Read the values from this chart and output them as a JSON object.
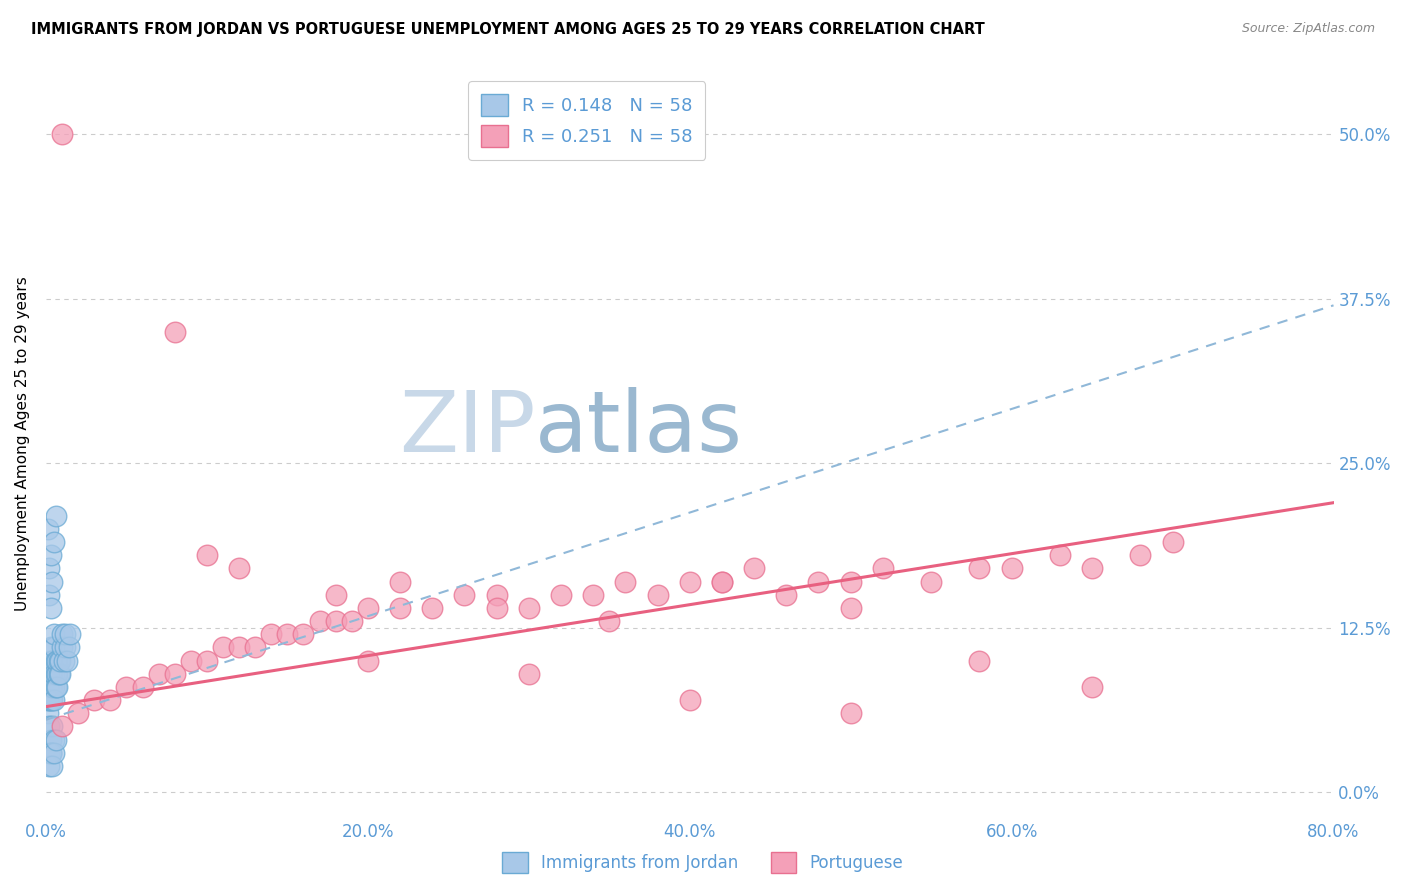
{
  "title": "IMMIGRANTS FROM JORDAN VS PORTUGUESE UNEMPLOYMENT AMONG AGES 25 TO 29 YEARS CORRELATION CHART",
  "source": "Source: ZipAtlas.com",
  "xlabel_ticks": [
    "0.0%",
    "20.0%",
    "40.0%",
    "60.0%",
    "80.0%"
  ],
  "xlabel_tick_vals": [
    0.0,
    0.2,
    0.4,
    0.6,
    0.8
  ],
  "ylabel_ticks": [
    "0.0%",
    "12.5%",
    "25.0%",
    "37.5%",
    "50.0%"
  ],
  "ylabel_tick_vals": [
    0.0,
    0.125,
    0.25,
    0.375,
    0.5
  ],
  "ylabel": "Unemployment Among Ages 25 to 29 years",
  "color_blue": "#a8c8e8",
  "color_pink": "#f4a0b8",
  "color_blue_edge": "#6aaad4",
  "color_pink_edge": "#e87090",
  "color_blue_line": "#90b8d8",
  "color_pink_line": "#e86080",
  "color_axis": "#5b9bd5",
  "color_grid": "#cccccc",
  "xlim": [
    0.0,
    0.8
  ],
  "ylim": [
    -0.02,
    0.55
  ],
  "jordan_x": [
    0.001,
    0.001,
    0.001,
    0.002,
    0.002,
    0.002,
    0.002,
    0.002,
    0.003,
    0.003,
    0.003,
    0.003,
    0.003,
    0.004,
    0.004,
    0.004,
    0.004,
    0.005,
    0.005,
    0.005,
    0.005,
    0.005,
    0.006,
    0.006,
    0.006,
    0.007,
    0.007,
    0.007,
    0.008,
    0.008,
    0.009,
    0.009,
    0.01,
    0.01,
    0.011,
    0.012,
    0.012,
    0.013,
    0.014,
    0.015,
    0.001,
    0.002,
    0.002,
    0.003,
    0.003,
    0.004,
    0.005,
    0.006,
    0.002,
    0.003,
    0.004,
    0.005,
    0.003,
    0.002,
    0.003,
    0.004,
    0.005,
    0.006
  ],
  "jordan_y": [
    0.08,
    0.06,
    0.07,
    0.09,
    0.1,
    0.07,
    0.08,
    0.05,
    0.07,
    0.08,
    0.09,
    0.1,
    0.11,
    0.07,
    0.08,
    0.09,
    0.1,
    0.08,
    0.09,
    0.07,
    0.11,
    0.12,
    0.08,
    0.09,
    0.1,
    0.09,
    0.1,
    0.08,
    0.1,
    0.09,
    0.09,
    0.1,
    0.11,
    0.12,
    0.1,
    0.11,
    0.12,
    0.1,
    0.11,
    0.12,
    0.2,
    0.17,
    0.15,
    0.14,
    0.18,
    0.16,
    0.19,
    0.21,
    0.03,
    0.04,
    0.05,
    0.04,
    0.03,
    0.02,
    0.03,
    0.02,
    0.03,
    0.04
  ],
  "portuguese_x": [
    0.01,
    0.02,
    0.03,
    0.04,
    0.05,
    0.06,
    0.07,
    0.08,
    0.09,
    0.1,
    0.11,
    0.12,
    0.13,
    0.14,
    0.15,
    0.16,
    0.17,
    0.18,
    0.19,
    0.2,
    0.22,
    0.24,
    0.26,
    0.28,
    0.3,
    0.32,
    0.34,
    0.36,
    0.38,
    0.4,
    0.42,
    0.44,
    0.46,
    0.48,
    0.5,
    0.52,
    0.55,
    0.58,
    0.6,
    0.63,
    0.65,
    0.68,
    0.7,
    0.08,
    0.12,
    0.18,
    0.22,
    0.28,
    0.35,
    0.42,
    0.5,
    0.58,
    0.65,
    0.1,
    0.2,
    0.3,
    0.4,
    0.5
  ],
  "portuguese_y": [
    0.05,
    0.06,
    0.07,
    0.07,
    0.08,
    0.08,
    0.09,
    0.09,
    0.1,
    0.1,
    0.11,
    0.11,
    0.11,
    0.12,
    0.12,
    0.12,
    0.13,
    0.13,
    0.13,
    0.14,
    0.14,
    0.14,
    0.15,
    0.15,
    0.14,
    0.15,
    0.15,
    0.16,
    0.15,
    0.16,
    0.16,
    0.17,
    0.15,
    0.16,
    0.16,
    0.17,
    0.16,
    0.17,
    0.17,
    0.18,
    0.17,
    0.18,
    0.19,
    0.35,
    0.17,
    0.15,
    0.16,
    0.14,
    0.13,
    0.16,
    0.14,
    0.1,
    0.08,
    0.18,
    0.1,
    0.09,
    0.07,
    0.06
  ],
  "portuguese_outlier_x": [
    0.01
  ],
  "portuguese_outlier_y": [
    0.5
  ],
  "jordan_trend_x": [
    0.0,
    0.8
  ],
  "jordan_trend_y": [
    0.055,
    0.37
  ],
  "portuguese_trend_x": [
    0.0,
    0.8
  ],
  "portuguese_trend_y": [
    0.065,
    0.22
  ],
  "watermark_zip": "ZIP",
  "watermark_atlas": "atlas",
  "watermark_color_zip": "#c8d8e8",
  "watermark_color_atlas": "#9ab8d0"
}
